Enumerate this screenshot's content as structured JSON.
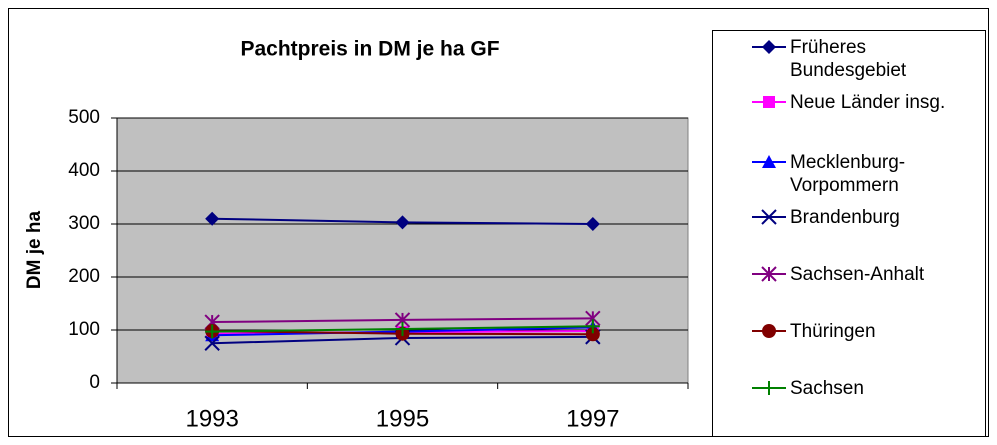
{
  "chart_data": {
    "type": "line",
    "title": "Pachtpreis in DM je ha GF",
    "y_label": "DM je ha",
    "categories": [
      "1993",
      "1995",
      "1997"
    ],
    "ylim": [
      0,
      500
    ],
    "yticks": [
      0,
      100,
      200,
      300,
      400,
      500
    ],
    "grid": true,
    "legend": "right",
    "series": [
      {
        "name": "Früheres Bundesgebiet",
        "color": "#000080",
        "marker": "diamond",
        "values": [
          310,
          303,
          300
        ]
      },
      {
        "name": "Neue Länder insg.",
        "color": "#ff00ff",
        "marker": "square",
        "values": [
          93,
          96,
          98
        ]
      },
      {
        "name": "Mecklenburg-Vorpommern",
        "color": "#0000ff",
        "marker": "triangle",
        "values": [
          90,
          97,
          105
        ]
      },
      {
        "name": "Brandenburg",
        "color": "#000080",
        "marker": "x",
        "values": [
          75,
          85,
          87
        ]
      },
      {
        "name": "Sachsen-Anhalt",
        "color": "#800080",
        "marker": "star",
        "values": [
          115,
          119,
          122
        ]
      },
      {
        "name": "Thüringen",
        "color": "#800000",
        "marker": "circle",
        "values": [
          98,
          93,
          92
        ]
      },
      {
        "name": "Sachsen",
        "color": "#008000",
        "marker": "plus",
        "values": [
          97,
          102,
          107
        ]
      }
    ]
  }
}
